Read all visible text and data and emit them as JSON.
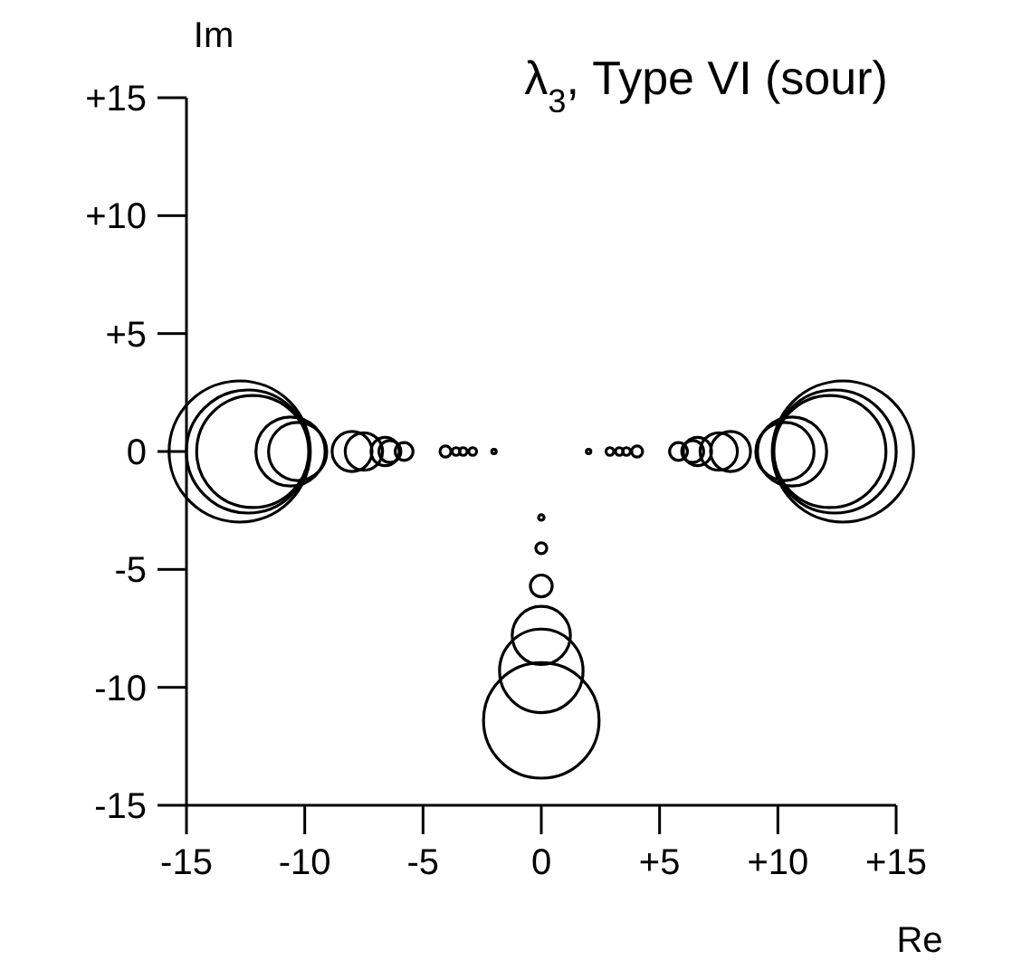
{
  "chart_data": {
    "type": "bubble",
    "title": "λ$_{3}$, Type VI (sour)",
    "xlabel": "Re",
    "ylabel": "Im",
    "xlim": [
      -15,
      15
    ],
    "ylim": [
      -15,
      15
    ],
    "xticks": [
      -15,
      -10,
      -5,
      0,
      {
        "value": 5,
        "label": "+5"
      },
      {
        "value": 10,
        "label": "+10"
      },
      {
        "value": 15,
        "label": "+15"
      }
    ],
    "yticks": [
      -15,
      -10,
      -5,
      0,
      {
        "value": 5,
        "label": "+5"
      },
      {
        "value": 10,
        "label": "+10"
      },
      {
        "value": 15,
        "label": "+15"
      }
    ],
    "grid": false,
    "series": [
      {
        "color": "#000000",
        "x": [
          -12.75,
          -12.4,
          -12.2,
          -10.6,
          -10.3,
          -8.0,
          -7.5,
          -6.6,
          -6.4,
          -5.8,
          -4.05,
          -3.6,
          -3.3,
          -2.9,
          -2.0,
          2.0,
          2.9,
          3.3,
          3.6,
          4.05,
          5.8,
          6.4,
          6.6,
          7.5,
          8.0,
          10.3,
          10.6,
          12.2,
          12.4,
          12.75,
          0,
          0,
          0,
          0,
          0,
          0
        ],
        "values": [
          0,
          0,
          0,
          0,
          0,
          0,
          0,
          0,
          0,
          0,
          0,
          0,
          0,
          0,
          0,
          0,
          0,
          0,
          0,
          0,
          0,
          0,
          0,
          0,
          0,
          0,
          0,
          0,
          0,
          0,
          -2.8,
          -4.1,
          -5.7,
          -7.8,
          -9.3,
          -11.4
        ],
        "sizes": [
          1,
          0.76,
          0.63,
          0.24,
          0.17,
          0.08,
          0.07,
          0.04,
          0.024,
          0.016,
          0.006,
          0.003,
          0.003,
          0.003,
          0.001,
          0.001,
          0.003,
          0.003,
          0.003,
          0.006,
          0.016,
          0.024,
          0.04,
          0.07,
          0.08,
          0.17,
          0.24,
          0.63,
          0.76,
          1,
          0.0015,
          0.006,
          0.024,
          0.17,
          0.35,
          0.67
        ]
      }
    ]
  }
}
